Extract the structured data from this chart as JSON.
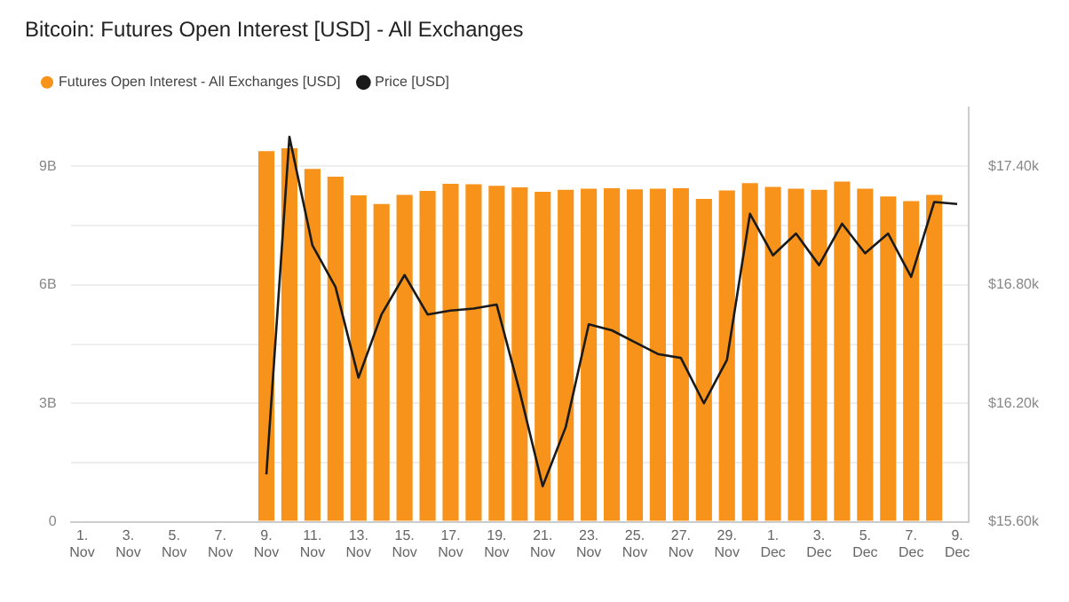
{
  "chart_data": {
    "type": "bar",
    "title": "Bitcoin: Futures Open Interest [USD] - All Exchanges",
    "categories": [
      "1. Nov",
      null,
      "3. Nov",
      null,
      "5. Nov",
      null,
      "7. Nov",
      null,
      "9. Nov",
      null,
      "11. Nov",
      null,
      "13. Nov",
      null,
      "15. Nov",
      null,
      "17. Nov",
      null,
      "19. Nov",
      null,
      "21. Nov",
      null,
      "23. Nov",
      null,
      "25. Nov",
      null,
      "27. Nov",
      null,
      "29. Nov",
      null,
      "1. Dec",
      null,
      "3. Dec",
      null,
      "5. Dec",
      null,
      "7. Dec",
      null,
      "9. Dec"
    ],
    "series": [
      {
        "name": "Futures Open Interest - All Exchanges [USD]",
        "color": "#f7931a",
        "values": [
          null,
          null,
          null,
          null,
          null,
          null,
          null,
          null,
          9.39,
          9.46,
          8.94,
          8.74,
          8.27,
          8.05,
          8.28,
          8.38,
          8.56,
          8.55,
          8.51,
          8.47,
          8.36,
          8.41,
          8.44,
          8.45,
          8.42,
          8.44,
          8.45,
          8.18,
          8.39,
          8.58,
          8.48,
          8.44,
          8.41,
          8.62,
          8.44,
          8.24,
          8.12,
          8.28,
          null
        ]
      },
      {
        "name": "Price [USD]",
        "type": "line",
        "axis": "y2",
        "color": "#1a1a1a",
        "marker": "none",
        "values": [
          null,
          null,
          null,
          null,
          null,
          null,
          null,
          null,
          15840,
          17550,
          17000,
          16790,
          16330,
          16650,
          16850,
          16650,
          16670,
          16680,
          16700,
          16260,
          15780,
          16080,
          16600,
          16570,
          16510,
          16450,
          16430,
          16200,
          16420,
          17160,
          16950,
          17060,
          16900,
          17110,
          16960,
          17060,
          16840,
          17220,
          17210
        ]
      }
    ],
    "ylim": [
      0,
      10.5
    ],
    "yticks": [
      0,
      {
        "value": 1.5,
        "label": null
      },
      {
        "value": 3,
        "label": "3B"
      },
      {
        "value": 4.5,
        "label": null
      },
      {
        "value": 6,
        "label": "6B"
      },
      {
        "value": 7.5,
        "label": null
      },
      {
        "value": 9,
        "label": "9B"
      }
    ],
    "y2lim": [
      15600,
      17700
    ],
    "y2ticks": [
      {
        "value": 15600,
        "label": "$15.60k"
      },
      {
        "value": 16200,
        "label": "$16.20k"
      },
      {
        "value": 16800,
        "label": "$16.80k"
      },
      {
        "value": 17400,
        "label": "$17.40k"
      }
    ],
    "grid": "y",
    "legend": "top left"
  }
}
